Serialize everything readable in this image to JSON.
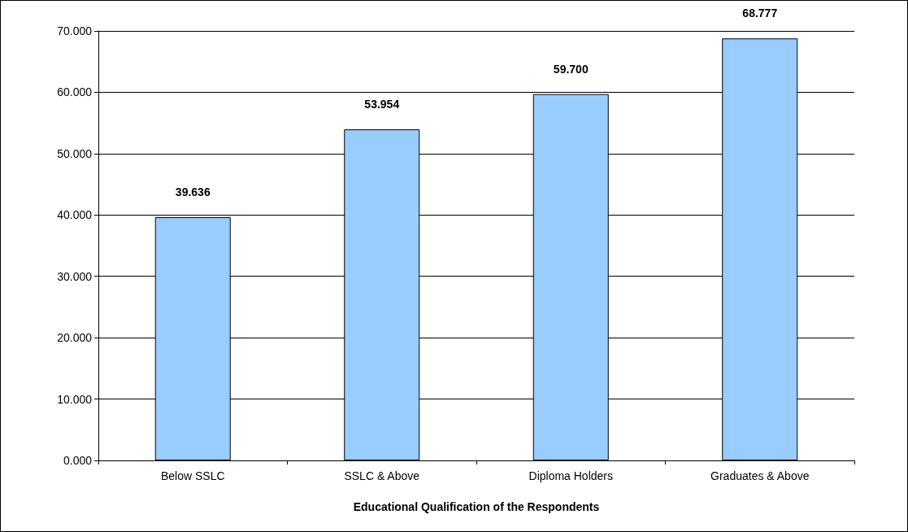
{
  "chart_data": {
    "type": "bar",
    "xlabel": "Educational Qualification of the Respondents",
    "categories": [
      "Below SSLC",
      "SSLC & Above",
      "Diploma Holders",
      "Graduates & Above"
    ],
    "values": [
      39.636,
      53.954,
      59.7,
      68.777
    ],
    "value_labels": [
      "39.636",
      "53.954",
      "59.700",
      "68.777"
    ],
    "color": "#99ccff",
    "ylim": [
      0,
      70
    ],
    "yticks": [
      {
        "value": 0,
        "label": "0.000"
      },
      {
        "value": 10,
        "label": "10.000"
      },
      {
        "value": 20,
        "label": "20.000"
      },
      {
        "value": 30,
        "label": "30.000"
      },
      {
        "value": 40,
        "label": "40.000"
      },
      {
        "value": 50,
        "label": "50.000"
      },
      {
        "value": 60,
        "label": "60.000"
      },
      {
        "value": 70,
        "label": "70.000"
      }
    ],
    "grid": "y"
  }
}
